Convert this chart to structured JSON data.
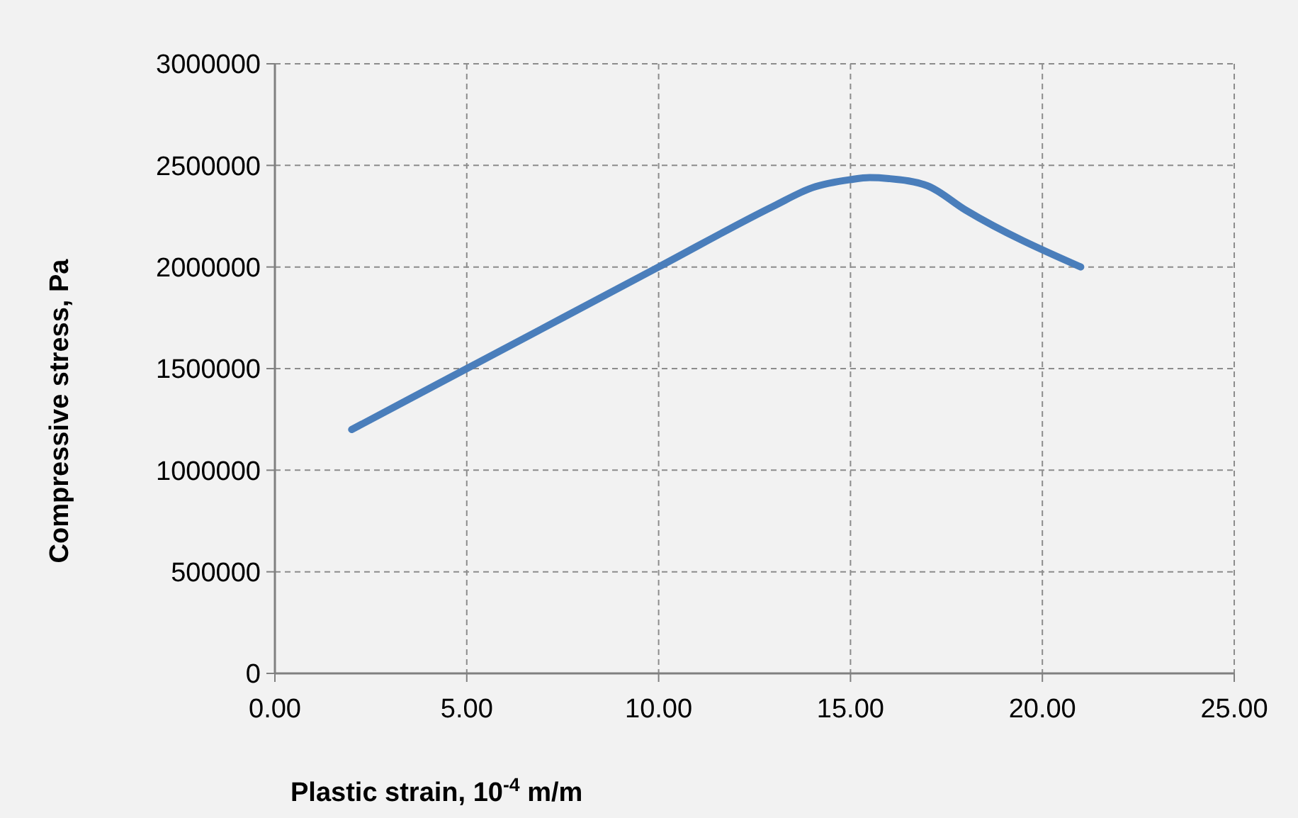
{
  "chart_data": {
    "type": "line",
    "xlabel": "Plastic strain, 10$^{-4}$ m/m",
    "ylabel": "Compressive stress, Pa",
    "x": [
      2,
      5,
      10,
      13,
      14,
      15,
      15.5,
      16,
      17,
      18,
      21
    ],
    "series": [
      {
        "color": "#4a7ebb",
        "values": [
          1200000,
          1500000,
          2000000,
          2300000,
          2390000,
          2430000,
          2440000,
          2435000,
          2400000,
          2280000,
          2000000
        ]
      }
    ],
    "xlim": [
      0,
      25
    ],
    "xticks": [
      {
        "value": 0,
        "label": "0.00"
      },
      {
        "value": 5,
        "label": "5.00"
      },
      {
        "value": 10,
        "label": "10.00"
      },
      {
        "value": 15,
        "label": "15.00"
      },
      {
        "value": 20,
        "label": "20.00"
      },
      {
        "value": 25,
        "label": "25.00"
      }
    ],
    "ylim": [
      0,
      3000000
    ],
    "yticks": [
      0,
      500000,
      1000000,
      1500000,
      2000000,
      2500000,
      3000000
    ],
    "grid": true,
    "marker": "none",
    "line_style": "solid"
  }
}
